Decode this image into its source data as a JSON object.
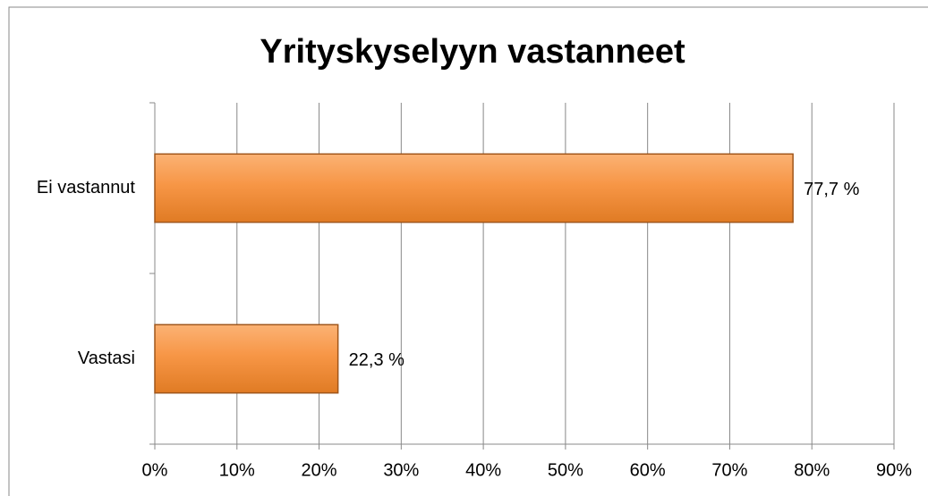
{
  "chart_data": {
    "type": "hbar",
    "title": "Yrityskyselyyn vastanneet",
    "categories": [
      "Ei vastannut",
      "Vastasi"
    ],
    "values": [
      77.7,
      22.3
    ],
    "value_labels": [
      "77,7 %",
      "22,3 %"
    ],
    "color": "#f79646",
    "xlim": [
      0,
      90
    ],
    "xticks": [
      {
        "value": 0,
        "label": "0%"
      },
      {
        "value": 10,
        "label": "10%"
      },
      {
        "value": 20,
        "label": "20%"
      },
      {
        "value": 30,
        "label": "30%"
      },
      {
        "value": 40,
        "label": "40%"
      },
      {
        "value": 50,
        "label": "50%"
      },
      {
        "value": 60,
        "label": "60%"
      },
      {
        "value": 70,
        "label": "70%"
      },
      {
        "value": 80,
        "label": "80%"
      },
      {
        "value": 90,
        "label": "90%"
      }
    ],
    "grid": true
  }
}
